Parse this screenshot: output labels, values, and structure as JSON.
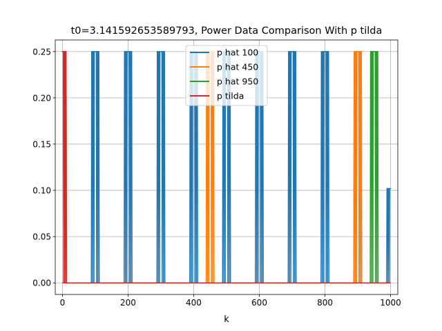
{
  "chart_data": {
    "type": "line",
    "title": "t0=3.141592653589793, Power Data Comparison With p tilda",
    "xlabel": "k",
    "ylabel": "",
    "xlim": [
      -22,
      1022
    ],
    "ylim": [
      -0.0125,
      0.2625
    ],
    "xticks": [
      0,
      200,
      400,
      600,
      800,
      1000
    ],
    "xtick_labels": [
      "0",
      "200",
      "400",
      "600",
      "800",
      "1000"
    ],
    "yticks": [
      0.0,
      0.05,
      0.1,
      0.15,
      0.2,
      0.25
    ],
    "ytick_labels": [
      "0.00",
      "0.05",
      "0.10",
      "0.15",
      "0.20",
      "0.25"
    ],
    "grid": true,
    "legend_position": "top-center",
    "series": [
      {
        "name": "p hat 100",
        "color": "#1f77b4",
        "peaks": [
          {
            "k": 0,
            "value": 0.25
          },
          {
            "k": 100,
            "value": 0.25
          },
          {
            "k": 200,
            "value": 0.25
          },
          {
            "k": 300,
            "value": 0.25
          },
          {
            "k": 400,
            "value": 0.25
          },
          {
            "k": 500,
            "value": 0.25
          },
          {
            "k": 600,
            "value": 0.25
          },
          {
            "k": 700,
            "value": 0.25
          },
          {
            "k": 800,
            "value": 0.25
          },
          {
            "k": 900,
            "value": 0.25
          },
          {
            "k": 1000,
            "value": 0.102
          }
        ]
      },
      {
        "name": "p hat 450",
        "color": "#ff7f0e",
        "peaks": [
          {
            "k": 0,
            "value": 0.25
          },
          {
            "k": 450,
            "value": 0.25
          },
          {
            "k": 900,
            "value": 0.25
          }
        ]
      },
      {
        "name": "p hat 950",
        "color": "#2ca02c",
        "peaks": [
          {
            "k": 0,
            "value": 0.25
          },
          {
            "k": 950,
            "value": 0.25
          }
        ]
      },
      {
        "name": "p tilda",
        "color": "#d62728",
        "peaks": [
          {
            "k": 0,
            "value": 0.25
          }
        ]
      }
    ]
  }
}
